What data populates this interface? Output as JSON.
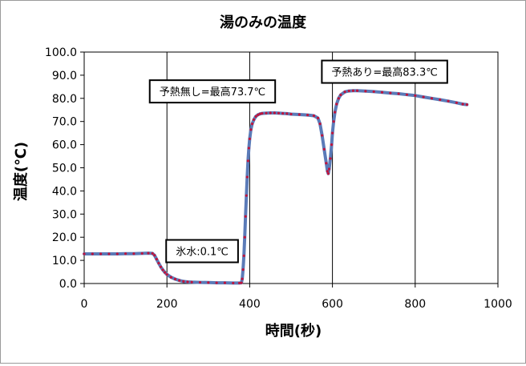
{
  "chart_data": {
    "type": "scatter",
    "title": "湯のみの温度",
    "xlabel": "時間(秒)",
    "ylabel": "温度(℃)",
    "xlim": [
      0,
      1000
    ],
    "ylim": [
      0,
      100
    ],
    "x_ticks": [
      0,
      200,
      400,
      600,
      800,
      1000
    ],
    "x_tick_labels": [
      "0",
      "200",
      "400",
      "600",
      "800",
      "1000"
    ],
    "y_ticks": [
      0,
      10,
      20,
      30,
      40,
      50,
      60,
      70,
      80,
      90,
      100
    ],
    "y_tick_labels": [
      "0.0",
      "10.0",
      "20.0",
      "30.0",
      "40.0",
      "50.0",
      "60.0",
      "70.0",
      "80.0",
      "90.0",
      "100.0"
    ],
    "grid": {
      "x": true,
      "y": false
    },
    "series_colors": {
      "line": "#5b7bb8",
      "marker": "#c0143c"
    },
    "series": [
      {
        "x": [
          0,
          20,
          40,
          60,
          80,
          100,
          120,
          140,
          155,
          165,
          170,
          175,
          180,
          185,
          190,
          195,
          200,
          210,
          220,
          230,
          240,
          250,
          260,
          280,
          300,
          320,
          340,
          360,
          375,
          380,
          382,
          384,
          386,
          388,
          390,
          392,
          394,
          396,
          398,
          400,
          403,
          406,
          410,
          415,
          420,
          425,
          430,
          440,
          450,
          460,
          470,
          480,
          490,
          500,
          520,
          540,
          555,
          565,
          570,
          575,
          580,
          585,
          588,
          590,
          592,
          595,
          598,
          600,
          603,
          606,
          610,
          615,
          620,
          630,
          640,
          650,
          660,
          680,
          700,
          720,
          740,
          760,
          780,
          800,
          820,
          840,
          860,
          880,
          900,
          915,
          925
        ],
        "y": [
          12.8,
          12.8,
          12.8,
          12.8,
          12.8,
          12.9,
          12.9,
          13.0,
          13.1,
          13.0,
          12.2,
          10.5,
          8.8,
          7.2,
          5.9,
          4.8,
          3.9,
          2.7,
          1.9,
          1.3,
          0.9,
          0.7,
          0.6,
          0.5,
          0.4,
          0.3,
          0.3,
          0.2,
          0.2,
          0.3,
          2.0,
          6.0,
          12.0,
          20.0,
          29.0,
          38.0,
          46.0,
          53.0,
          58.5,
          62.5,
          66.5,
          69.0,
          70.8,
          72.2,
          72.9,
          73.3,
          73.5,
          73.6,
          73.7,
          73.7,
          73.6,
          73.5,
          73.4,
          73.2,
          73.0,
          72.8,
          72.5,
          71.5,
          69.0,
          64.0,
          58.0,
          52.0,
          48.5,
          47.5,
          49.5,
          54.0,
          60.0,
          65.0,
          70.0,
          74.0,
          77.5,
          80.0,
          81.5,
          82.8,
          83.2,
          83.3,
          83.3,
          83.1,
          82.9,
          82.6,
          82.3,
          82.0,
          81.6,
          81.2,
          80.6,
          80.0,
          79.4,
          78.8,
          78.1,
          77.5,
          77.3
        ]
      }
    ],
    "annotations": [
      {
        "text": "氷水:0.1℃",
        "x": 285,
        "y": 14
      },
      {
        "text": "予熱無し=最高73.7℃",
        "x": 310,
        "y": 83
      },
      {
        "text": "予熱あり=最高83.3℃",
        "x": 726,
        "y": 91.5
      }
    ]
  }
}
